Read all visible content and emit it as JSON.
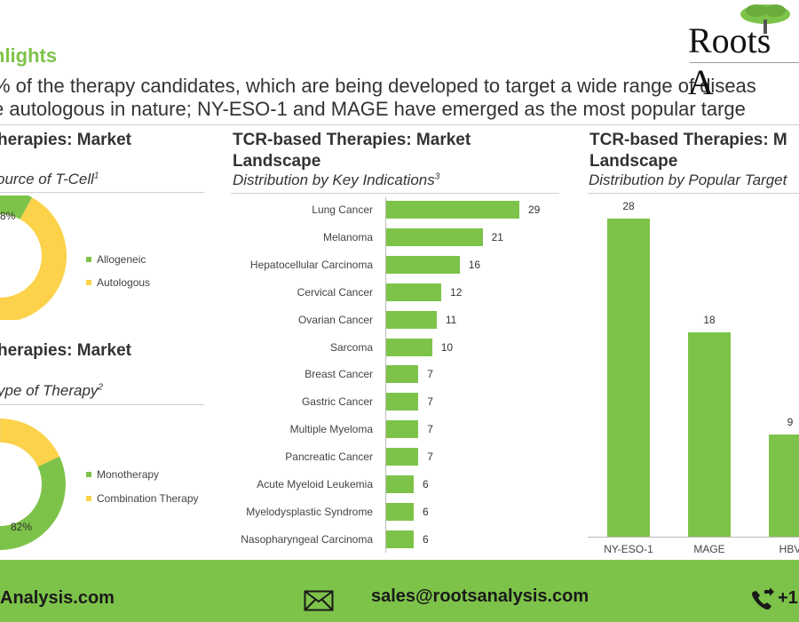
{
  "header": {
    "title": "hlights",
    "intro_line1": "% of the therapy candidates, which are being developed to target a wide range of diseas",
    "intro_line2": "e autologous in nature; NY-ESO-1 and MAGE have emerged as the most popular targe",
    "logo_text": "Roots A"
  },
  "panel_left_top": {
    "title": "herapies: Market",
    "subtitle": "ource of T-Cell",
    "subtitle_sup": "1",
    "slice_label": "8%",
    "legend": [
      "Allogeneic",
      "Autologous"
    ]
  },
  "panel_left_bottom": {
    "title": "herapies: Market",
    "subtitle": "ype of Therapy",
    "subtitle_sup": "2",
    "slice_label": "82%",
    "legend": [
      "Monotherapy",
      "Combination Therapy"
    ]
  },
  "panel_middle": {
    "title_line1": "TCR-based Therapies: Market",
    "title_line2": "Landscape",
    "subtitle": "Distribution by Key Indications",
    "subtitle_sup": "3"
  },
  "panel_right": {
    "title_line1": "TCR-based Therapies: M",
    "title_line2": "Landscape",
    "subtitle": "Distribution by Popular Target"
  },
  "footer": {
    "website": "Analysis.com",
    "email": "sales@rootsanalysis.com",
    "phone": "+1"
  },
  "colors": {
    "green": "#7dc34a",
    "yellow": "#fcd24a",
    "footer_bg": "#7dc34a"
  },
  "chart_data": [
    {
      "type": "pie",
      "title": "",
      "categories": [
        "Allogeneic",
        "Autologous"
      ],
      "values": [
        8,
        92
      ],
      "data_labels": [
        "8%",
        ""
      ]
    },
    {
      "type": "pie",
      "title": "",
      "categories": [
        "Monotherapy",
        "Combination Therapy"
      ],
      "values": [
        82,
        18
      ],
      "data_labels": [
        "82%",
        ""
      ]
    },
    {
      "type": "bar",
      "orientation": "horizontal",
      "categories": [
        "Lung Cancer",
        "Melanoma",
        "Hepatocellular Carcinoma",
        "Cervical Cancer",
        "Ovarian Cancer",
        "Sarcoma",
        "Breast Cancer",
        "Gastric Cancer",
        "Multiple Myeloma",
        "Pancreatic Cancer",
        "Acute Myeloid Leukemia",
        "Myelodysplastic Syndrome",
        "Nasopharyngeal Carcinoma"
      ],
      "values": [
        29,
        21,
        16,
        12,
        11,
        10,
        7,
        7,
        7,
        7,
        6,
        6,
        6
      ],
      "xlim": [
        0,
        40
      ]
    },
    {
      "type": "bar",
      "orientation": "vertical",
      "categories": [
        "NY-ESO-1",
        "MAGE",
        "HBV"
      ],
      "values": [
        28,
        18,
        9
      ],
      "ylim": [
        0,
        30
      ]
    }
  ]
}
